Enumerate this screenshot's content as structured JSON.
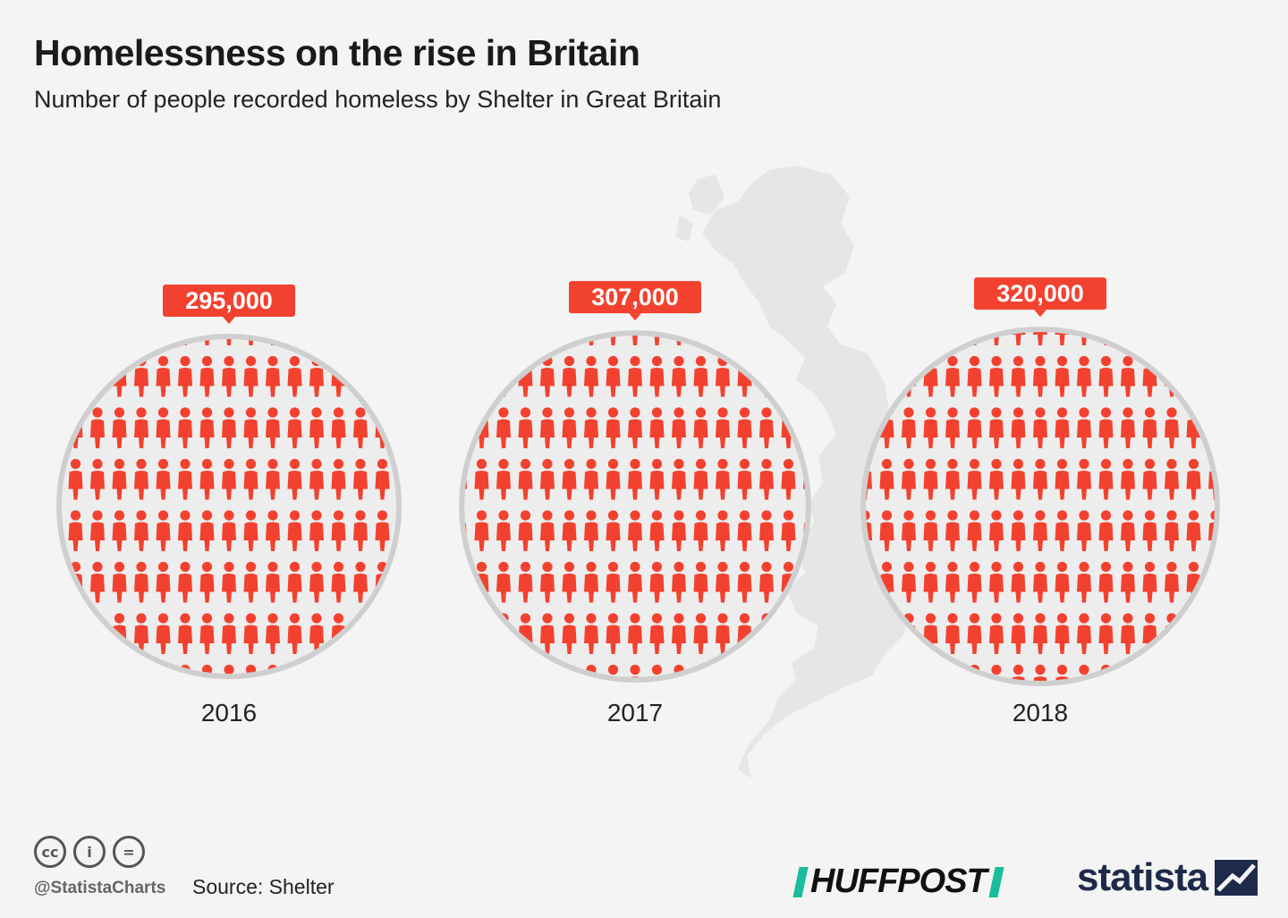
{
  "header": {
    "title": "Homelessness on the rise in Britain",
    "subtitle": "Number of people recorded homeless by Shelter in Great Britain"
  },
  "footer": {
    "handle": "@StatistaCharts",
    "source": "Source: Shelter",
    "partner_logo": "HUFFPOST",
    "brand_logo": "statista",
    "license_icons": [
      "cc-icon",
      "attribution-icon",
      "no-derivatives-icon"
    ]
  },
  "colors": {
    "accent": "#f2422f",
    "circle_border": "#cfcfcf",
    "circle_fill": "#ededed",
    "map": "#e6e6e6",
    "background": "#f4f4f4"
  },
  "chart_data": {
    "type": "pictogram",
    "categories": [
      "2016",
      "2017",
      "2018"
    ],
    "values": [
      295000,
      307000,
      320000
    ],
    "value_labels": [
      "295,000",
      "307,000",
      "320,000"
    ],
    "icon": "person-icon",
    "unit": "people"
  }
}
